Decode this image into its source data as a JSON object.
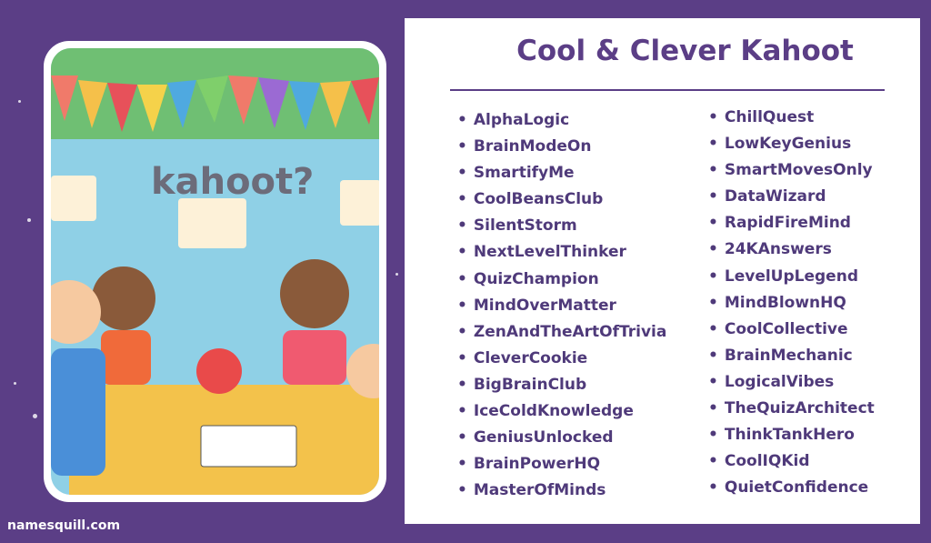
{
  "title": "Cool & Clever Kahoot",
  "illustration": {
    "sign_text": "kahoot?"
  },
  "names_left": [
    "AlphaLogic",
    "BrainModeOn",
    "SmartifyMe",
    "CoolBeansClub",
    "SilentStorm",
    "NextLevelThinker",
    "QuizChampion",
    "MindOverMatter",
    "ZenAndTheArtOfTrivia",
    "CleverCookie",
    "BigBrainClub",
    "IceColdKnowledge",
    "GeniusUnlocked",
    "BrainPowerHQ",
    "MasterOfMinds"
  ],
  "names_right": [
    "ChillQuest",
    "LowKeyGenius",
    "SmartMovesOnly",
    "DataWizard",
    "RapidFireMind",
    "24KAnswers",
    "LevelUpLegend",
    "MindBlownHQ",
    "CoolCollective",
    "BrainMechanic",
    "LogicalVibes",
    "TheQuizArchitect",
    "ThinkTankHero",
    "CoolIQKid",
    "QuietConfidence"
  ],
  "brand": "namesquill.com",
  "colors": {
    "background": "#5b3e86",
    "text": "#4f3a7a",
    "panel": "#ffffff"
  }
}
